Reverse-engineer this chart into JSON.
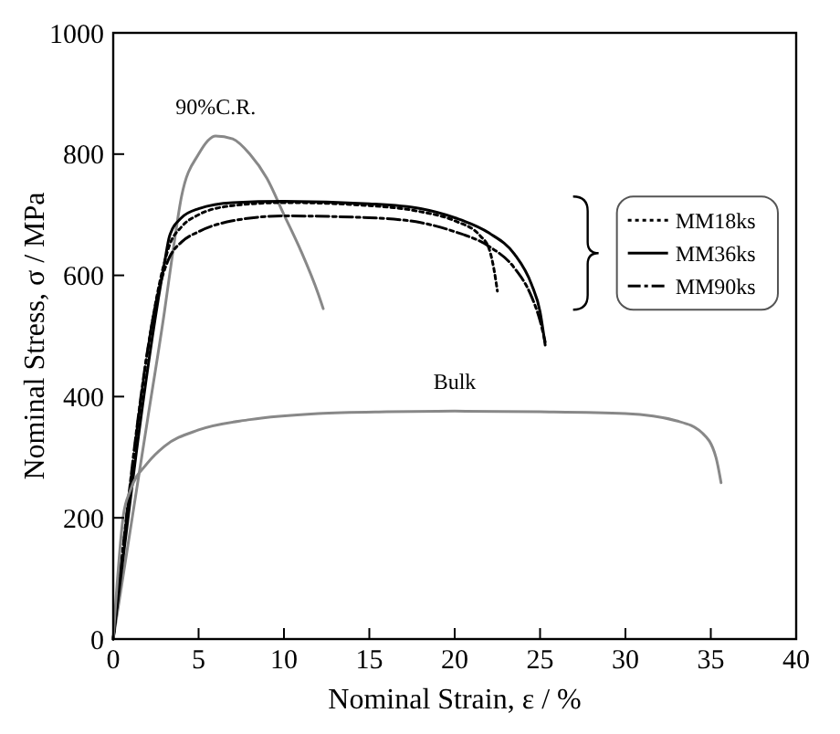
{
  "chart_data": {
    "type": "line",
    "xlabel": "Nominal Strain, ε / %",
    "ylabel": "Nominal Stress, σ / MPa",
    "xlim": [
      0,
      40
    ],
    "xticks": [
      0,
      5,
      10,
      15,
      20,
      25,
      30,
      35,
      40
    ],
    "ylim": [
      0,
      1000
    ],
    "yticks": [
      0,
      200,
      400,
      600,
      800,
      1000
    ],
    "grid": false,
    "legend": "right",
    "marker": "none",
    "series": [
      {
        "name": "90%C.R.",
        "color": "#888888",
        "x": [
          0,
          2,
          3,
          3.5,
          4,
          5,
          6,
          7,
          8,
          9,
          10,
          11,
          12,
          12.3
        ],
        "values": [
          0,
          360,
          540,
          640,
          730,
          800,
          830,
          825,
          800,
          760,
          700,
          640,
          570,
          545
        ]
      },
      {
        "name": "MM18ks",
        "color": "#000000",
        "line_style": "dotted",
        "x": [
          0,
          2.9,
          3.3,
          4,
          5,
          7,
          10,
          15,
          18,
          20,
          21.5,
          22,
          22.3,
          22.5
        ],
        "values": [
          0,
          610,
          650,
          680,
          700,
          715,
          720,
          715,
          705,
          690,
          665,
          645,
          610,
          574
        ]
      },
      {
        "name": "MM36ks",
        "color": "#000000",
        "line_style": "solid",
        "x": [
          0,
          3,
          3.3,
          4,
          5,
          7,
          10,
          15,
          18,
          20,
          22,
          23.5,
          24.5,
          25,
          25.3
        ],
        "values": [
          0,
          620,
          665,
          695,
          710,
          720,
          722,
          718,
          710,
          695,
          670,
          635,
          585,
          540,
          485
        ]
      },
      {
        "name": "MM90ks",
        "color": "#000000",
        "line_style": "dashed",
        "x": [
          0,
          2.9,
          3.3,
          4,
          5,
          7,
          10,
          15,
          18,
          20,
          22,
          23.5,
          24.5,
          25,
          25.3
        ],
        "values": [
          0,
          600,
          630,
          655,
          672,
          690,
          698,
          695,
          687,
          672,
          648,
          612,
          565,
          525,
          490
        ]
      },
      {
        "name": "Bulk",
        "color": "#888888",
        "x": [
          0,
          0.6,
          1,
          2,
          3,
          5,
          8,
          12,
          16,
          20,
          25,
          30,
          33,
          34.5,
          35.3,
          35.6
        ],
        "values": [
          0,
          205,
          245,
          290,
          318,
          345,
          362,
          372,
          375,
          376,
          375,
          372,
          360,
          340,
          300,
          258
        ]
      }
    ]
  }
}
